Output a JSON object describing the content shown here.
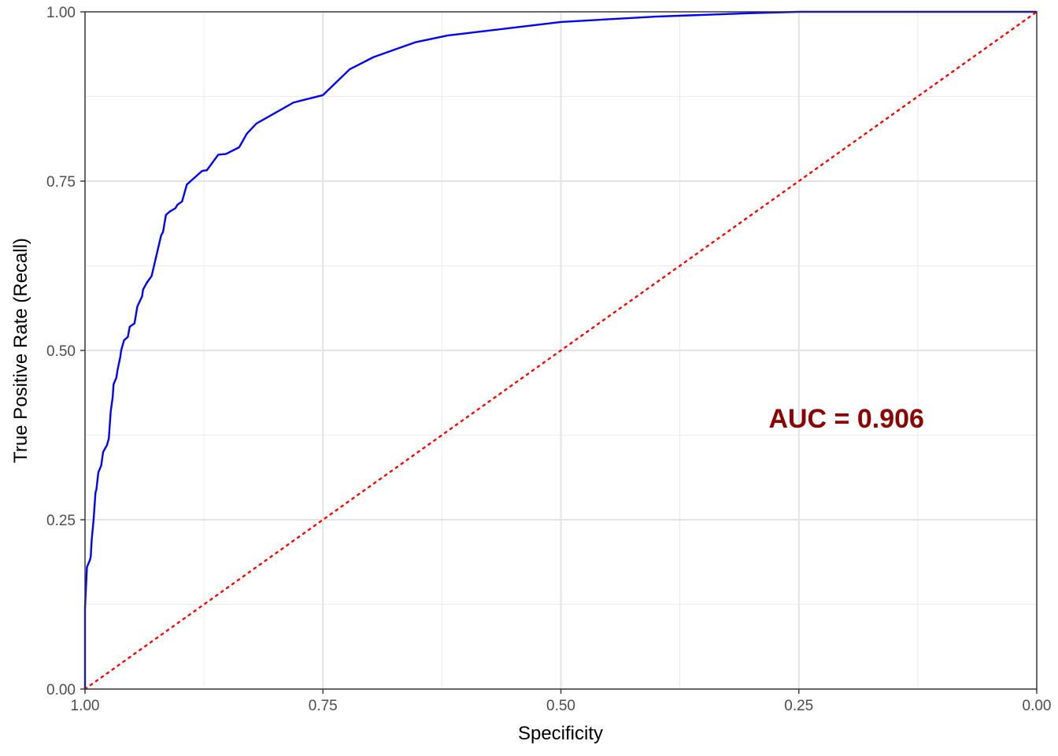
{
  "chart_data": {
    "type": "line",
    "title": "",
    "xlabel": "Specificity",
    "ylabel": "True Positive Rate (Recall)",
    "x_reversed": true,
    "xlim": [
      1.0,
      0.0
    ],
    "ylim": [
      0.0,
      1.0
    ],
    "x_ticks": [
      1.0,
      0.75,
      0.5,
      0.25,
      0.0
    ],
    "x_tick_labels": [
      "1.00",
      "0.75",
      "0.50",
      "0.25",
      "0.00"
    ],
    "y_ticks": [
      0.0,
      0.25,
      0.5,
      0.75,
      1.0
    ],
    "y_tick_labels": [
      "0.00",
      "0.25",
      "0.50",
      "0.75",
      "1.00"
    ],
    "grid": true,
    "series": [
      {
        "color": "#0000ff",
        "style": "solid",
        "x": [
          1.0,
          1.0,
          0.998,
          0.995,
          0.994,
          0.993,
          0.991,
          0.989,
          0.988,
          0.986,
          0.983,
          0.981,
          0.977,
          0.975,
          0.973,
          0.972,
          0.971,
          0.97,
          0.967,
          0.966,
          0.963,
          0.962,
          0.959,
          0.955,
          0.953,
          0.948,
          0.945,
          0.94,
          0.939,
          0.935,
          0.93,
          0.925,
          0.92,
          0.918,
          0.915,
          0.911,
          0.905,
          0.903,
          0.898,
          0.893,
          0.881,
          0.877,
          0.872,
          0.86,
          0.852,
          0.838,
          0.83,
          0.82,
          0.781,
          0.75,
          0.722,
          0.697,
          0.653,
          0.619,
          0.5,
          0.4,
          0.3,
          0.25,
          0.0
        ],
        "y": [
          0.0,
          0.12,
          0.18,
          0.19,
          0.195,
          0.22,
          0.25,
          0.29,
          0.295,
          0.32,
          0.33,
          0.35,
          0.36,
          0.37,
          0.41,
          0.42,
          0.43,
          0.45,
          0.46,
          0.47,
          0.49,
          0.5,
          0.515,
          0.52,
          0.535,
          0.54,
          0.565,
          0.58,
          0.59,
          0.6,
          0.61,
          0.64,
          0.67,
          0.675,
          0.7,
          0.705,
          0.71,
          0.715,
          0.72,
          0.745,
          0.76,
          0.765,
          0.766,
          0.789,
          0.79,
          0.8,
          0.82,
          0.835,
          0.866,
          0.877,
          0.915,
          0.933,
          0.955,
          0.965,
          0.985,
          0.993,
          0.998,
          1.0,
          1.0
        ]
      },
      {
        "color": "#ff0000",
        "style": "dotted",
        "x": [
          1.0,
          0.0
        ],
        "y": [
          0.0,
          1.0
        ]
      }
    ],
    "annotations": [
      {
        "text": "AUC = 0.906",
        "x": 0.2,
        "y": 0.4,
        "color": "#8b0000"
      }
    ]
  }
}
